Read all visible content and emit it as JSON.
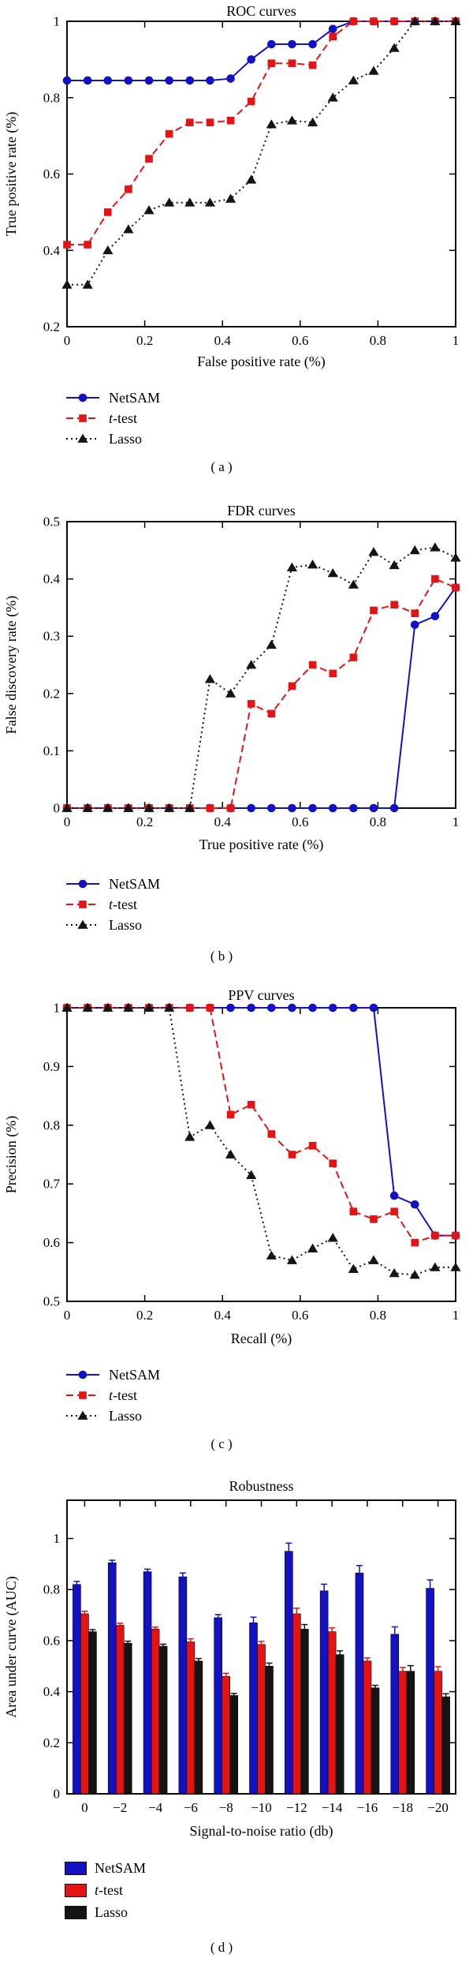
{
  "colors": {
    "netsam": "#1212c4",
    "ttest": "#e51313",
    "lasso": "#141414",
    "axis": "#000000"
  },
  "chart_data": [
    {
      "id": "a",
      "type": "line",
      "title": "ROC curves",
      "xlabel": "False positive rate (%)",
      "ylabel": "True positive rate (%)",
      "xlim": [
        0,
        1
      ],
      "ylim": [
        0.2,
        1
      ],
      "xticks": [
        0,
        0.2,
        0.4,
        0.6,
        0.8,
        1
      ],
      "yticks": [
        0.2,
        0.4,
        0.6,
        0.8,
        1
      ],
      "grid": false,
      "legend_position": "below-left",
      "caption": "( a )",
      "x": [
        0,
        0.053,
        0.105,
        0.158,
        0.211,
        0.263,
        0.316,
        0.368,
        0.421,
        0.474,
        0.526,
        0.579,
        0.632,
        0.684,
        0.737,
        0.789,
        0.842,
        0.895,
        0.947,
        1
      ],
      "series": [
        {
          "name": "NetSAM",
          "color": "#1212c4",
          "marker": "circle",
          "line": "solid",
          "values": [
            0.845,
            0.845,
            0.845,
            0.845,
            0.845,
            0.845,
            0.845,
            0.845,
            0.85,
            0.9,
            0.94,
            0.94,
            0.94,
            0.98,
            1,
            1,
            1,
            1,
            1,
            1
          ]
        },
        {
          "name": "t-test",
          "color": "#e51313",
          "marker": "square",
          "line": "dashed",
          "values": [
            0.415,
            0.415,
            0.5,
            0.56,
            0.64,
            0.705,
            0.735,
            0.735,
            0.74,
            0.79,
            0.89,
            0.89,
            0.885,
            0.96,
            1,
            1,
            1,
            1,
            1,
            1
          ]
        },
        {
          "name": "Lasso",
          "color": "#141414",
          "marker": "triangle",
          "line": "dotted",
          "values": [
            0.31,
            0.31,
            0.4,
            0.455,
            0.505,
            0.525,
            0.525,
            0.525,
            0.535,
            0.585,
            0.73,
            0.74,
            0.735,
            0.8,
            0.845,
            0.87,
            0.93,
            1,
            1,
            1
          ]
        }
      ]
    },
    {
      "id": "b",
      "type": "line",
      "title": "FDR curves",
      "xlabel": "True positive rate (%)",
      "ylabel": "False discovery rate (%)",
      "xlim": [
        0,
        1
      ],
      "ylim": [
        0,
        0.5
      ],
      "xticks": [
        0,
        0.2,
        0.4,
        0.6,
        0.8,
        1
      ],
      "yticks": [
        0,
        0.1,
        0.2,
        0.3,
        0.4,
        0.5
      ],
      "grid": false,
      "legend_position": "below-left",
      "caption": "( b )",
      "x": [
        0,
        0.053,
        0.105,
        0.158,
        0.211,
        0.263,
        0.316,
        0.368,
        0.421,
        0.474,
        0.526,
        0.579,
        0.632,
        0.684,
        0.737,
        0.789,
        0.842,
        0.895,
        0.947,
        1
      ],
      "series": [
        {
          "name": "NetSAM",
          "color": "#1212c4",
          "marker": "circle",
          "line": "solid",
          "values": [
            0,
            0,
            0,
            0,
            0,
            0,
            0,
            0,
            0,
            0,
            0,
            0,
            0,
            0,
            0,
            0,
            0,
            0.32,
            0.335,
            0.385
          ]
        },
        {
          "name": "t-test",
          "color": "#e51313",
          "marker": "square",
          "line": "dashed",
          "values": [
            0,
            0,
            0,
            0,
            0,
            0,
            0,
            0,
            0,
            0.182,
            0.165,
            0.213,
            0.25,
            0.235,
            0.263,
            0.345,
            0.355,
            0.34,
            0.4,
            0.385
          ]
        },
        {
          "name": "Lasso",
          "color": "#141414",
          "marker": "triangle",
          "line": "dotted",
          "values": [
            0,
            0,
            0,
            0,
            0,
            0,
            0,
            0.225,
            0.2,
            0.25,
            0.285,
            0.42,
            0.425,
            0.41,
            0.39,
            0.447,
            0.424,
            0.45,
            0.455,
            0.437
          ]
        }
      ]
    },
    {
      "id": "c",
      "type": "line",
      "title": "PPV curves",
      "xlabel": "Recall (%)",
      "ylabel": "Precision (%)",
      "xlim": [
        0,
        1
      ],
      "ylim": [
        0.5,
        1
      ],
      "xticks": [
        0,
        0.2,
        0.4,
        0.6,
        0.8,
        1
      ],
      "yticks": [
        0.5,
        0.6,
        0.7,
        0.8,
        0.9,
        1
      ],
      "grid": false,
      "legend_position": "below-left",
      "caption": "( c )",
      "x": [
        0,
        0.053,
        0.105,
        0.158,
        0.211,
        0.263,
        0.316,
        0.368,
        0.421,
        0.474,
        0.526,
        0.579,
        0.632,
        0.684,
        0.737,
        0.789,
        0.842,
        0.895,
        0.947,
        1
      ],
      "series": [
        {
          "name": "NetSAM",
          "color": "#1212c4",
          "marker": "circle",
          "line": "solid",
          "values": [
            1,
            1,
            1,
            1,
            1,
            1,
            1,
            1,
            1,
            1,
            1,
            1,
            1,
            1,
            1,
            1,
            0.68,
            0.665,
            0.612,
            0.612
          ]
        },
        {
          "name": "t-test",
          "color": "#e51313",
          "marker": "square",
          "line": "dashed",
          "values": [
            1,
            1,
            1,
            1,
            1,
            1,
            1,
            1,
            0.818,
            0.835,
            0.785,
            0.75,
            0.765,
            0.735,
            0.653,
            0.64,
            0.653,
            0.6,
            0.612,
            0.612
          ]
        },
        {
          "name": "Lasso",
          "color": "#141414",
          "marker": "triangle",
          "line": "dotted",
          "values": [
            1,
            1,
            1,
            1,
            1,
            1,
            0.78,
            0.8,
            0.75,
            0.715,
            0.578,
            0.57,
            0.59,
            0.608,
            0.555,
            0.57,
            0.548,
            0.545,
            0.558,
            0.558
          ]
        }
      ]
    },
    {
      "id": "d",
      "type": "bar",
      "title": "Robustness",
      "xlabel": "Signal-to-noise ratio (db)",
      "ylabel": "Area under curve (AUC)",
      "ylim": [
        0,
        1.15
      ],
      "yticks": [
        0,
        0.2,
        0.4,
        0.6,
        0.8,
        1
      ],
      "grid": false,
      "legend_position": "below-left",
      "caption": "( d )",
      "categories": [
        "0",
        "−2",
        "−4",
        "−6",
        "−8",
        "−10",
        "−12",
        "−14",
        "−16",
        "−18",
        "−20"
      ],
      "series": [
        {
          "name": "NetSAM",
          "color": "#1212c4",
          "values": [
            0.82,
            0.905,
            0.87,
            0.85,
            0.69,
            0.67,
            0.95,
            0.795,
            0.865,
            0.625,
            0.805
          ],
          "errors": [
            0.012,
            0.01,
            0.01,
            0.015,
            0.012,
            0.022,
            0.032,
            0.026,
            0.029,
            0.029,
            0.033
          ]
        },
        {
          "name": "t-test",
          "color": "#e51313",
          "values": [
            0.705,
            0.66,
            0.645,
            0.595,
            0.46,
            0.585,
            0.705,
            0.635,
            0.52,
            0.48,
            0.48
          ],
          "errors": [
            0.01,
            0.008,
            0.008,
            0.012,
            0.012,
            0.012,
            0.022,
            0.015,
            0.012,
            0.015,
            0.018
          ]
        },
        {
          "name": "Lasso",
          "color": "#141414",
          "values": [
            0.635,
            0.59,
            0.578,
            0.52,
            0.385,
            0.5,
            0.645,
            0.545,
            0.415,
            0.48,
            0.38
          ],
          "errors": [
            0.008,
            0.008,
            0.008,
            0.01,
            0.008,
            0.012,
            0.018,
            0.015,
            0.01,
            0.022,
            0.012
          ]
        }
      ]
    }
  ]
}
